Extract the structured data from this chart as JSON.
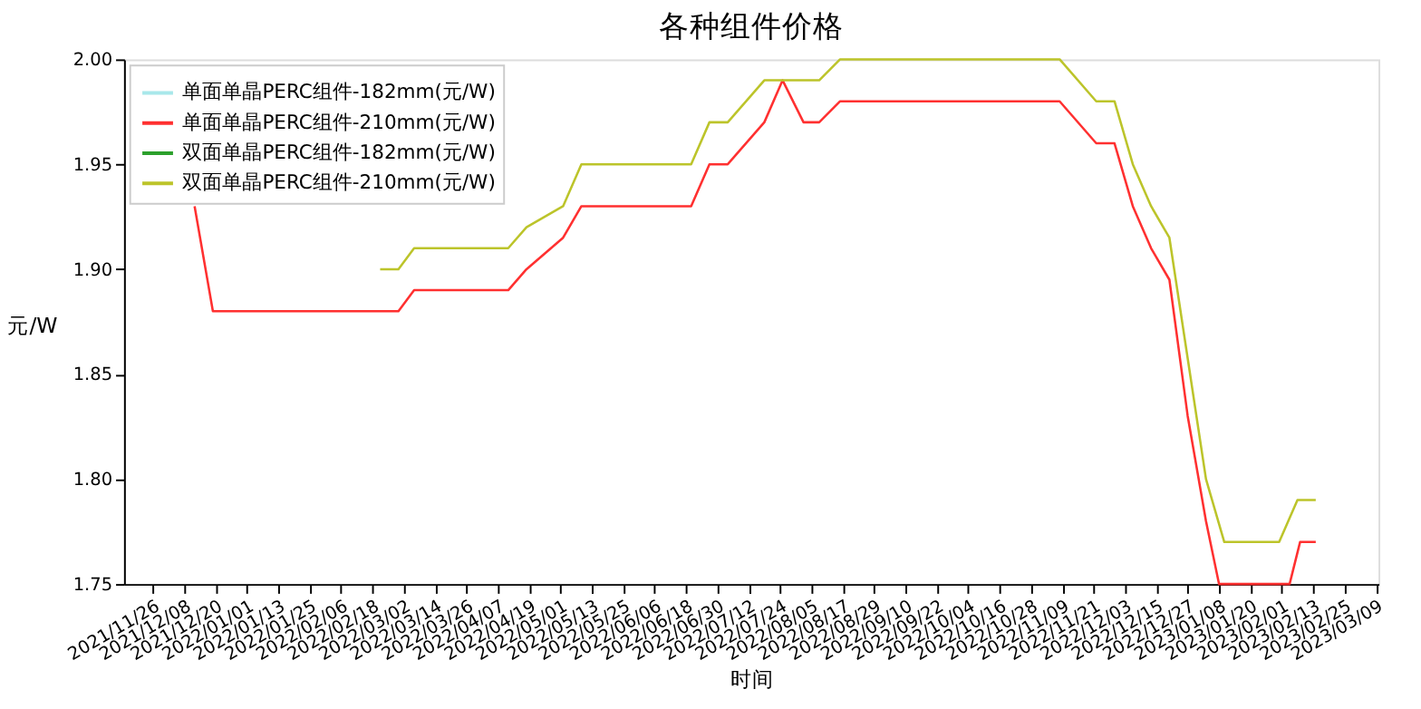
{
  "chart_data": {
    "type": "line",
    "title": "各种组件价格",
    "xlabel": "时间",
    "ylabel": "元/W",
    "legend": "top left",
    "grid": false,
    "line_style": "solid",
    "marker": "none",
    "ylim": [
      1.75,
      2.0
    ],
    "yticks": [
      {
        "value": 1.75,
        "label": "1.75"
      },
      {
        "value": 1.8,
        "label": "1.80"
      },
      {
        "value": 1.85,
        "label": "1.85"
      },
      {
        "value": 1.9,
        "label": "1.90"
      },
      {
        "value": 1.95,
        "label": "1.95"
      },
      {
        "value": 2.0,
        "label": "2.00"
      }
    ],
    "xlim": [
      "2021-11-15",
      "2023-03-10"
    ],
    "xticks": [
      {
        "value": "2021-11-26",
        "label": "2021/11/26"
      },
      {
        "value": "2021-12-08",
        "label": "2021/12/08"
      },
      {
        "value": "2021-12-20",
        "label": "2021/12/20"
      },
      {
        "value": "2022-01-01",
        "label": "2022/01/01"
      },
      {
        "value": "2022-01-13",
        "label": "2022/01/13"
      },
      {
        "value": "2022-01-25",
        "label": "2022/01/25"
      },
      {
        "value": "2022-02-06",
        "label": "2022/02/06"
      },
      {
        "value": "2022-02-18",
        "label": "2022/02/18"
      },
      {
        "value": "2022-03-02",
        "label": "2022/03/02"
      },
      {
        "value": "2022-03-14",
        "label": "2022/03/14"
      },
      {
        "value": "2022-03-26",
        "label": "2022/03/26"
      },
      {
        "value": "2022-04-07",
        "label": "2022/04/07"
      },
      {
        "value": "2022-04-19",
        "label": "2022/04/19"
      },
      {
        "value": "2022-05-01",
        "label": "2022/05/01"
      },
      {
        "value": "2022-05-13",
        "label": "2022/05/13"
      },
      {
        "value": "2022-05-25",
        "label": "2022/05/25"
      },
      {
        "value": "2022-06-06",
        "label": "2022/06/06"
      },
      {
        "value": "2022-06-18",
        "label": "2022/06/18"
      },
      {
        "value": "2022-06-30",
        "label": "2022/06/30"
      },
      {
        "value": "2022-07-12",
        "label": "2022/07/12"
      },
      {
        "value": "2022-07-24",
        "label": "2022/07/24"
      },
      {
        "value": "2022-08-05",
        "label": "2022/08/05"
      },
      {
        "value": "2022-08-17",
        "label": "2022/08/17"
      },
      {
        "value": "2022-08-29",
        "label": "2022/08/29"
      },
      {
        "value": "2022-09-10",
        "label": "2022/09/10"
      },
      {
        "value": "2022-09-22",
        "label": "2022/09/22"
      },
      {
        "value": "2022-10-04",
        "label": "2022/10/04"
      },
      {
        "value": "2022-10-16",
        "label": "2022/10/16"
      },
      {
        "value": "2022-10-28",
        "label": "2022/10/28"
      },
      {
        "value": "2022-11-09",
        "label": "2022/11/09"
      },
      {
        "value": "2022-11-21",
        "label": "2022/11/21"
      },
      {
        "value": "2022-12-03",
        "label": "2022/12/03"
      },
      {
        "value": "2022-12-15",
        "label": "2022/12/15"
      },
      {
        "value": "2022-12-27",
        "label": "2022/12/27"
      },
      {
        "value": "2023-01-08",
        "label": "2023/01/08"
      },
      {
        "value": "2023-01-20",
        "label": "2023/01/20"
      },
      {
        "value": "2023-02-01",
        "label": "2023/02/01"
      },
      {
        "value": "2023-02-13",
        "label": "2023/02/13"
      },
      {
        "value": "2023-02-25",
        "label": "2023/02/25"
      },
      {
        "value": "2023-03-09",
        "label": "2023/03/09"
      }
    ],
    "series": [
      {
        "name": "单面单晶PERC组件-182mm(元/W)",
        "color": "#a8e8ea"
      },
      {
        "name": "单面单晶PERC组件-210mm(元/W)",
        "color": "#ff3030",
        "x": [
          "2021-12-12",
          "2021-12-19",
          "2022-02-28",
          "2022-03-06",
          "2022-04-11",
          "2022-04-18",
          "2022-05-02",
          "2022-05-09",
          "2022-06-20",
          "2022-06-27",
          "2022-07-04",
          "2022-07-18",
          "2022-07-25",
          "2022-08-02",
          "2022-08-08",
          "2022-08-16",
          "2022-11-08",
          "2022-11-22",
          "2022-11-29",
          "2022-12-06",
          "2022-12-13",
          "2022-12-20",
          "2022-12-27",
          "2023-01-03",
          "2023-01-08",
          "2023-02-04",
          "2023-02-08",
          "2023-02-14"
        ],
        "values": [
          1.93,
          1.88,
          1.88,
          1.89,
          1.89,
          1.9,
          1.915,
          1.93,
          1.93,
          1.95,
          1.95,
          1.97,
          1.99,
          1.97,
          1.97,
          1.98,
          1.98,
          1.96,
          1.96,
          1.93,
          1.91,
          1.895,
          1.83,
          1.78,
          1.75,
          1.75,
          1.77,
          1.77
        ]
      },
      {
        "name": "双面单晶PERC组件-182mm(元/W)",
        "color": "#2ca02c"
      },
      {
        "name": "双面单晶PERC组件-210mm(元/W)",
        "color": "#bcc42a",
        "x": [
          "2022-02-21",
          "2022-02-28",
          "2022-03-06",
          "2022-04-11",
          "2022-04-18",
          "2022-05-02",
          "2022-05-09",
          "2022-06-20",
          "2022-06-27",
          "2022-07-04",
          "2022-07-18",
          "2022-08-08",
          "2022-08-16",
          "2022-11-08",
          "2022-11-22",
          "2022-11-29",
          "2022-12-06",
          "2022-12-13",
          "2022-12-20",
          "2023-01-03",
          "2023-01-10",
          "2023-01-31",
          "2023-02-07",
          "2023-02-14"
        ],
        "values": [
          1.9,
          1.9,
          1.91,
          1.91,
          1.92,
          1.93,
          1.95,
          1.95,
          1.97,
          1.97,
          1.99,
          1.99,
          2.0,
          2.0,
          1.98,
          1.98,
          1.95,
          1.93,
          1.915,
          1.8,
          1.77,
          1.77,
          1.79,
          1.79
        ]
      }
    ]
  }
}
